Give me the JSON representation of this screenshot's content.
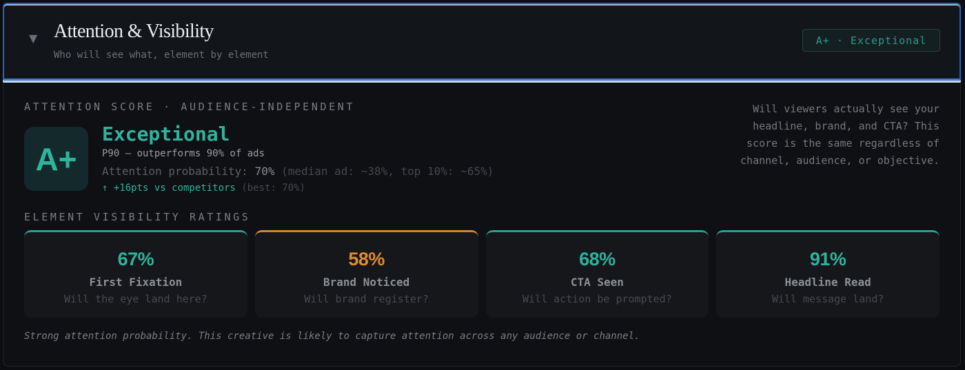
{
  "header": {
    "chevron_icon": "▼",
    "title": "Attention & Visibility",
    "subtitle": "Who will see what, element by element",
    "badge": "A+ · Exceptional"
  },
  "score": {
    "section_label": "ATTENTION SCORE · AUDIENCE-INDEPENDENT",
    "grade": "A+",
    "rating": "Exceptional",
    "percentile_text": "P90 — outperforms 90% of ads",
    "probability_label": "Attention probability: ",
    "probability_value": "70%",
    "probability_context": " (median ad: ~38%, top 10%: ~65%)",
    "competitors_delta": "↑ +16pts vs competitors",
    "competitors_best": " (best: 70%)",
    "explanation": "Will viewers actually see your headline, brand, and CTA? This score is the same regardless of channel, audience, or objective."
  },
  "ratings": {
    "section_label": "ELEMENT VISIBILITY RATINGS",
    "items": [
      {
        "value": "67%",
        "name": "First Fixation",
        "question": "Will the eye land here?",
        "status": "good",
        "color": "#2fb39d"
      },
      {
        "value": "58%",
        "name": "Brand Noticed",
        "question": "Will brand register?",
        "status": "warn",
        "color": "#e08c2c"
      },
      {
        "value": "68%",
        "name": "CTA Seen",
        "question": "Will action be prompted?",
        "status": "good",
        "color": "#2fb39d"
      },
      {
        "value": "91%",
        "name": "Headline Read",
        "question": "Will message land?",
        "status": "good",
        "color": "#2fb39d"
      }
    ]
  },
  "summary": "Strong attention probability. This creative is likely to capture attention across any audience or channel.",
  "colors": {
    "accent_teal": "#2fb39d",
    "warn_orange": "#e08c2c",
    "focus_blue": "#3b7ddb",
    "background": "#0f1014"
  }
}
